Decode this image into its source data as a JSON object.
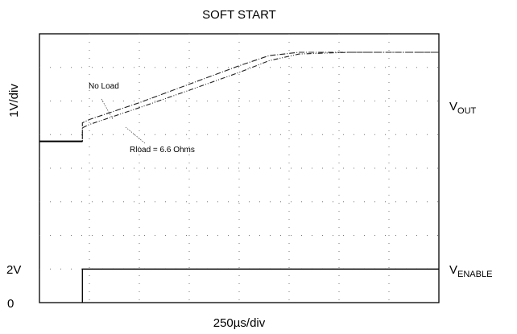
{
  "chart_data": {
    "type": "line",
    "title": "SOFT START",
    "xlabel": "250µs/div",
    "ylabel": "1V/div",
    "grid": "dotted, 8 x 8 divisions",
    "xlim": [
      0,
      8
    ],
    "ylim": [
      0,
      8
    ],
    "y_tick_labels": [
      "2V",
      "0"
    ],
    "channel_labels": [
      {
        "main": "V",
        "sub": "OUT"
      },
      {
        "main": "V",
        "sub": "ENABLE"
      }
    ],
    "annotations": [
      "No Load",
      "Rload = 6.6 Ohms"
    ],
    "series": [
      {
        "name": "No Load",
        "x": [
          0,
          0.86,
          0.86,
          1.0,
          2.0,
          3.0,
          4.0,
          4.6,
          5.2,
          6.2,
          8.0
        ],
        "y": [
          4.8,
          4.8,
          5.35,
          5.45,
          5.95,
          6.5,
          7.05,
          7.35,
          7.45,
          7.45,
          7.45
        ]
      },
      {
        "name": "Rload = 6.6 Ohms",
        "x": [
          0,
          0.86,
          0.86,
          1.0,
          2.0,
          3.0,
          4.0,
          4.6,
          5.2,
          6.2,
          8.0
        ],
        "y": [
          4.8,
          4.8,
          5.2,
          5.3,
          5.8,
          6.32,
          6.85,
          7.2,
          7.4,
          7.45,
          7.45
        ]
      },
      {
        "name": "V ENABLE",
        "x": [
          0.86,
          0.86,
          1.05,
          8.0
        ],
        "y": [
          0,
          1.0,
          1.0,
          1.0
        ]
      }
    ]
  }
}
